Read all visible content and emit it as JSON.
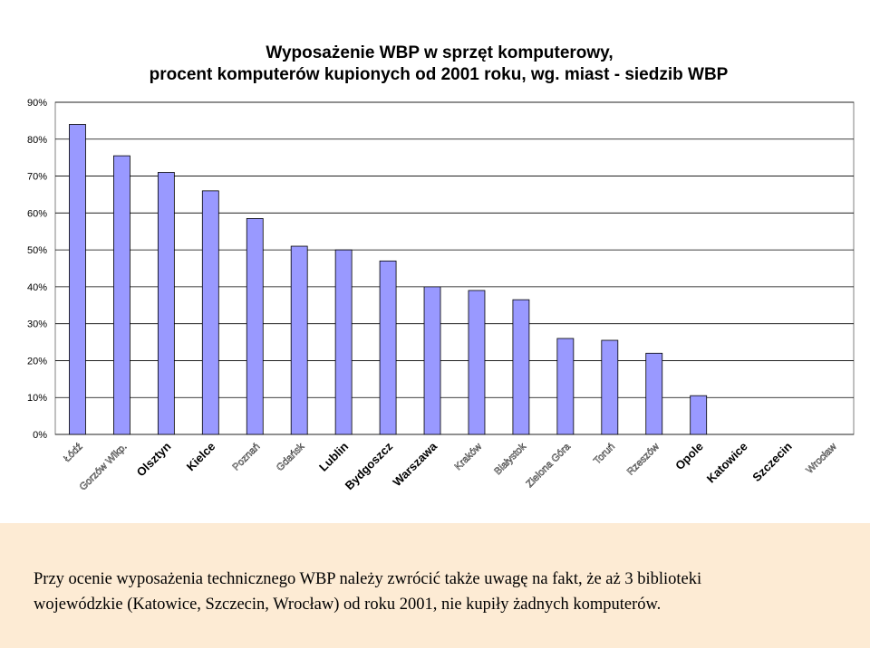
{
  "chart_data": {
    "type": "bar",
    "title": [
      "Wyposażenie WBP w sprzęt komputerowy,",
      "procent komputerów kupionych od 2001 roku, wg. miast - siedzib WBP"
    ],
    "categories": [
      "Łódź",
      "Gorzów Wlkp.",
      "Olsztyn",
      "Kielce",
      "Poznań",
      "Gdańsk",
      "Lublin",
      "Bydgoszcz",
      "Warszawa",
      "Kraków",
      "Białystok",
      "Zielona Góra",
      "Toruń",
      "Rzeszów",
      "Opole",
      "Katowice",
      "Szczecin",
      "Wrocław"
    ],
    "bold_categories": [
      "Olsztyn",
      "Kielce",
      "Lublin",
      "Bydgoszcz",
      "Warszawa",
      "Opole",
      "Katowice",
      "Szczecin"
    ],
    "values": [
      84,
      75.5,
      71,
      66,
      58.5,
      51,
      50,
      47,
      40,
      39,
      36.5,
      26,
      25.5,
      22,
      10.5,
      0,
      0,
      0
    ],
    "yticks": [
      "0%",
      "10%",
      "20%",
      "30%",
      "40%",
      "50%",
      "60%",
      "70%",
      "80%",
      "90%"
    ],
    "ylim": [
      0,
      90
    ],
    "grid": true,
    "colors": {
      "bar": "#9999ff",
      "bar_border": "#000000",
      "plot_bg": "#ffffff",
      "grid": "#000000"
    }
  },
  "caption": {
    "line1": "Przy ocenie wyposażenia technicznego WBP należy zwrócić także uwagę na fakt, że aż 3 biblioteki",
    "line2": "wojewódzkie (Katowice, Szczecin, Wrocław) od roku 2001, nie kupiły żadnych komputerów."
  },
  "colors": {
    "caption_bg": "#fdebd4"
  }
}
